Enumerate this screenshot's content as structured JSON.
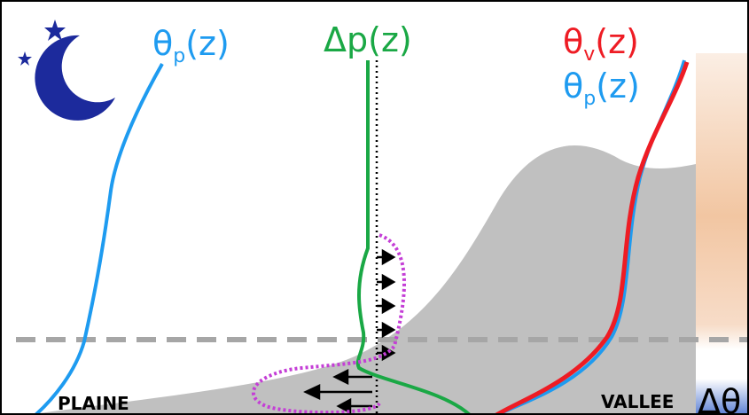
{
  "labels": {
    "theta_p_left": {
      "symbol": "θ",
      "subscript": "p",
      "argument": "(z)"
    },
    "delta_p": "Δp(z)",
    "theta_v_right": {
      "symbol": "θ",
      "subscript": "v",
      "argument": "(z)"
    },
    "theta_p_right": {
      "symbol": "θ",
      "subscript": "p",
      "argument": "(z)"
    },
    "plaine": "PLAINE",
    "vallee": "VALLEE",
    "delta_theta": "Δθ"
  }
}
